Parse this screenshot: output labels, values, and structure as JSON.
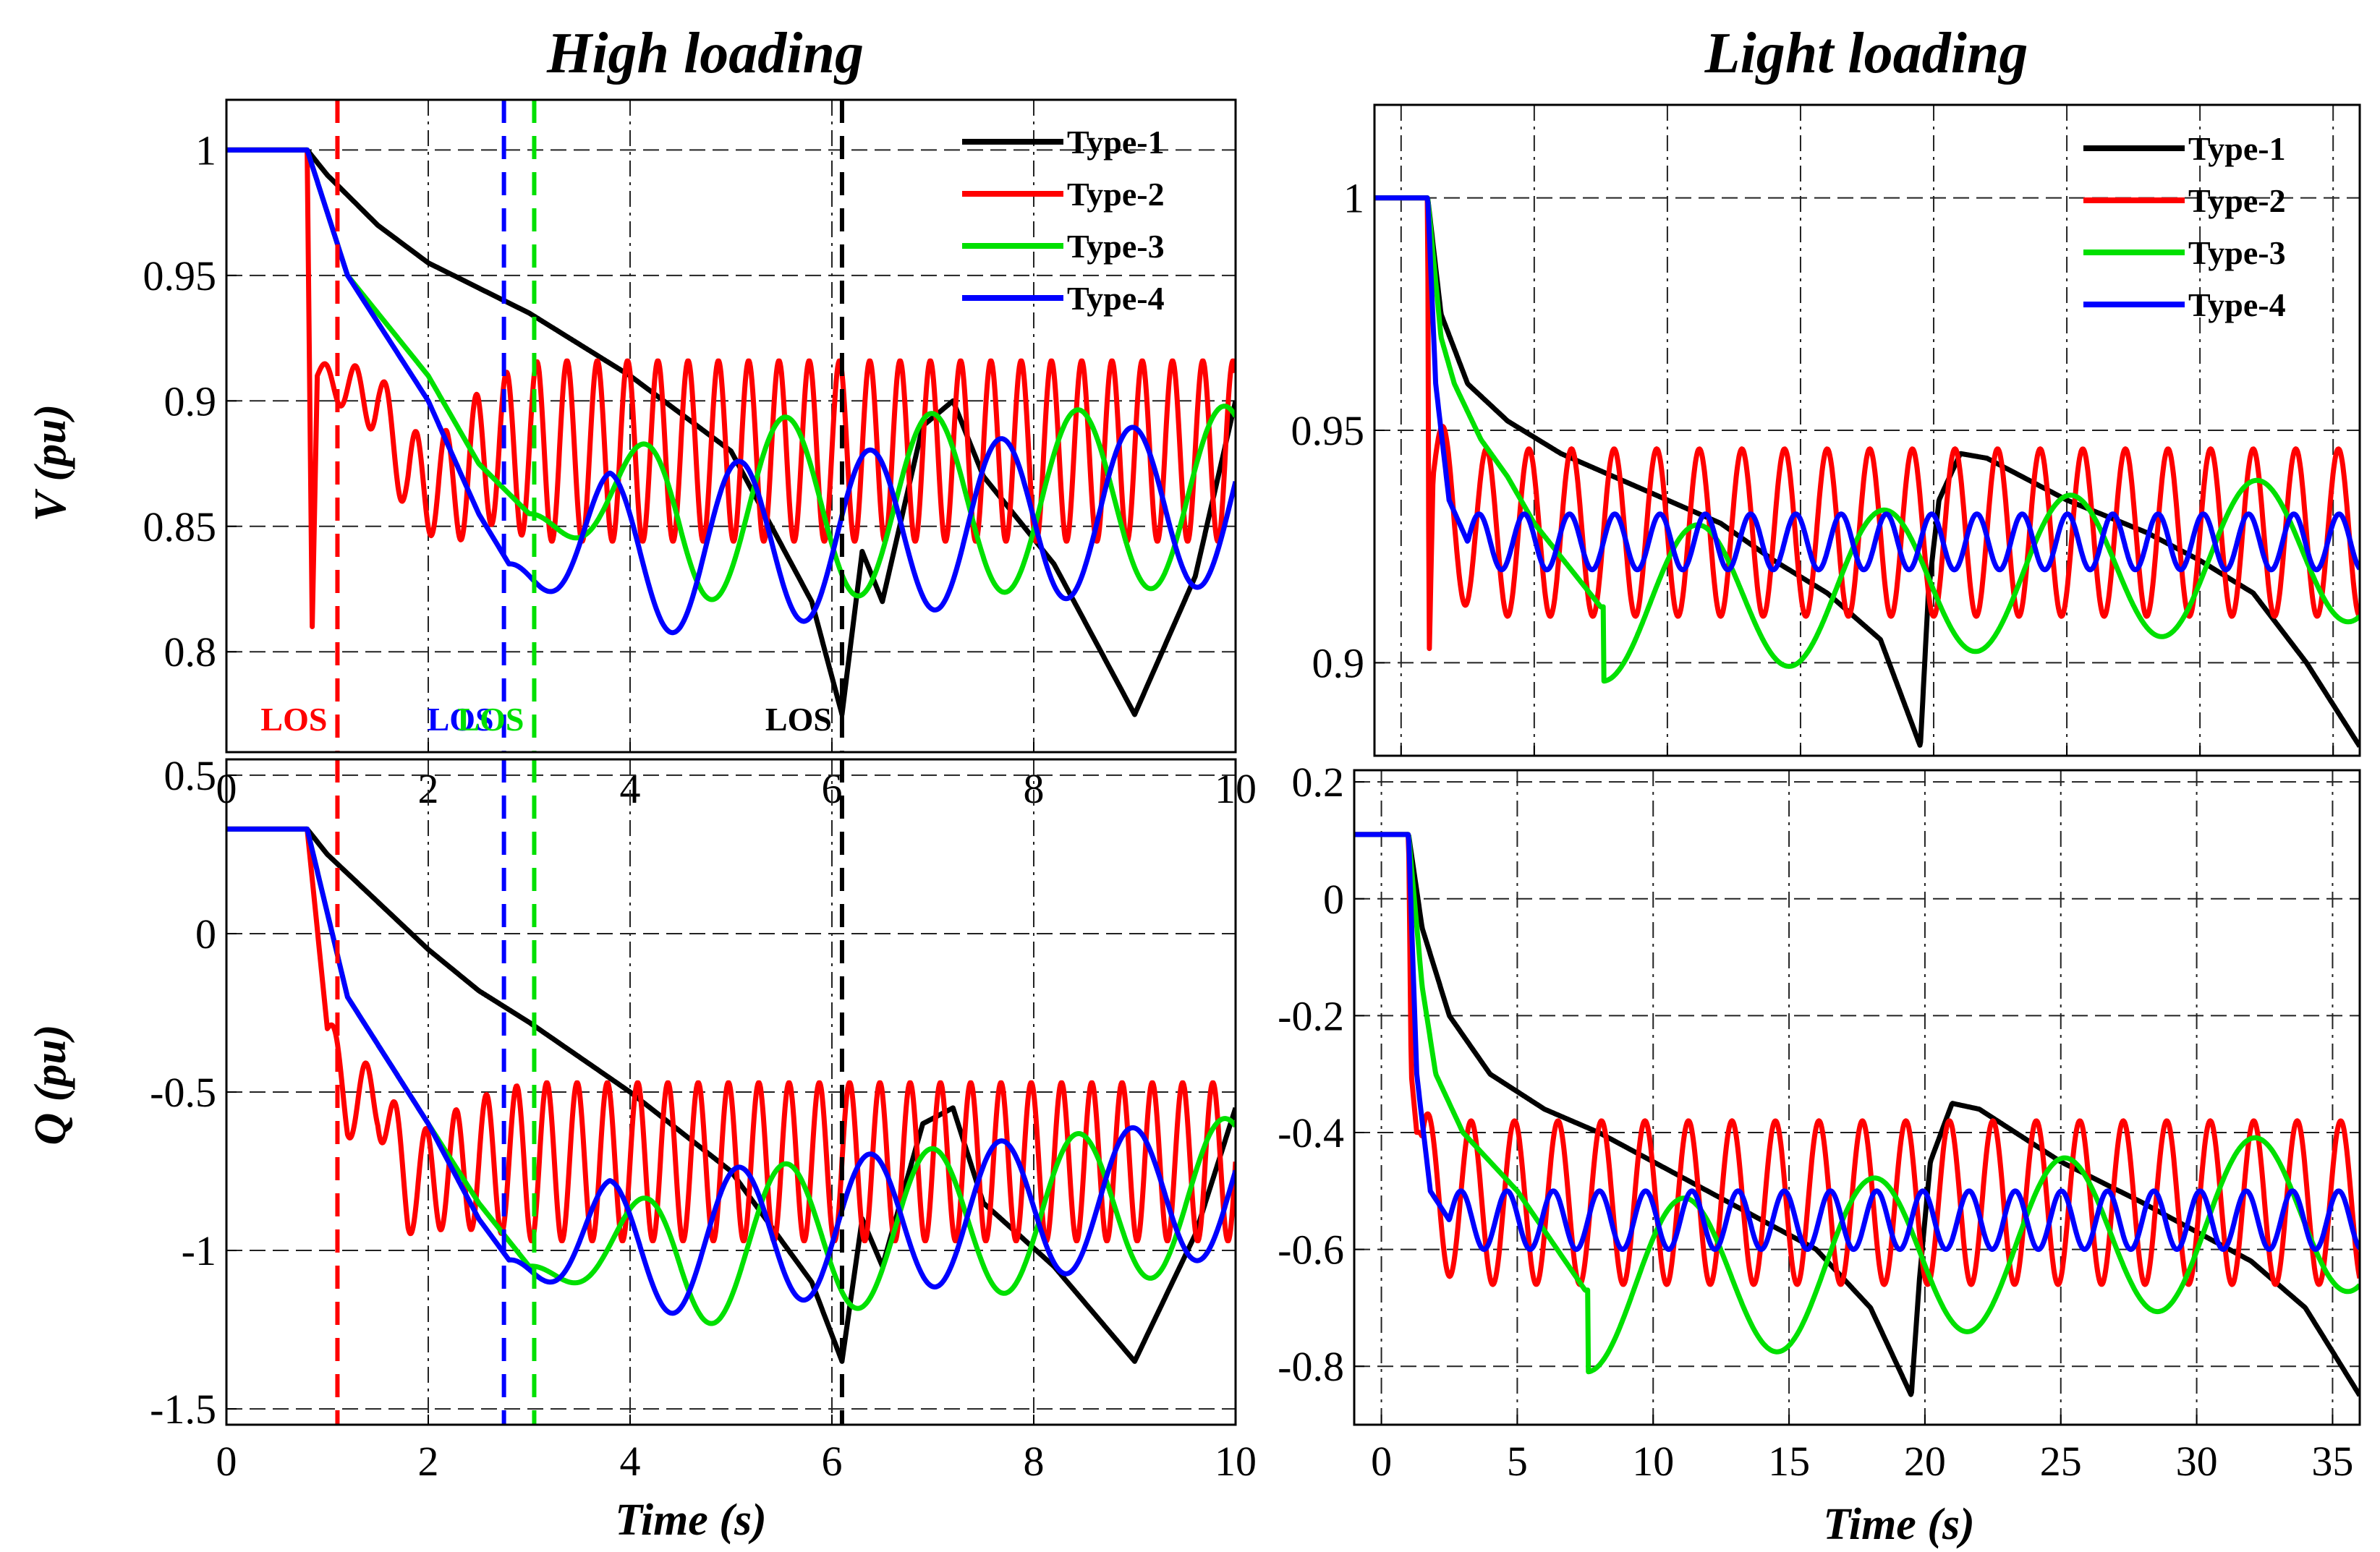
{
  "chart_data": [
    {
      "type": "line",
      "panel": "top-left",
      "title": "High loading",
      "xlabel": "",
      "ylabel": "V (pu)",
      "xlim": [
        0,
        10
      ],
      "ylim": [
        0.76,
        1.02
      ],
      "xticks": [
        0,
        2,
        4,
        6,
        8,
        10
      ],
      "yticks": [
        0.8,
        0.85,
        0.9,
        0.95,
        1
      ],
      "xtick_labels": [
        "0",
        "2",
        "4",
        "6",
        "8",
        "10"
      ],
      "ytick_labels": [
        "0.8",
        "0.85",
        "0.9",
        "0.95",
        "1"
      ],
      "grid": true,
      "legend": "top-right",
      "series": [
        {
          "name": "Type-1",
          "color": "#000000",
          "x": [
            0,
            0.8,
            1,
            1.5,
            2,
            3,
            4,
            5,
            5.8,
            6.1,
            6.3,
            6.5,
            6.9,
            7.2,
            7.5,
            8.2,
            9,
            9.6,
            10
          ],
          "y": [
            1,
            1,
            0.99,
            0.97,
            0.955,
            0.935,
            0.91,
            0.88,
            0.82,
            0.775,
            0.84,
            0.82,
            0.89,
            0.9,
            0.87,
            0.835,
            0.775,
            0.83,
            0.9
          ],
          "osc": null
        },
        {
          "name": "Type-2",
          "color": "#ff0000",
          "x": [
            0,
            0.8,
            0.85,
            0.9,
            1.2,
            1.5,
            1.8,
            2.2,
            2.6,
            10
          ],
          "y": [
            1,
            1,
            0.81,
            0.91,
            0.905,
            0.9,
            0.87,
            0.865,
            0.88,
            0.88
          ],
          "osc": {
            "start": 0.9,
            "period": 0.3,
            "amp0": 0.005,
            "amp1": 0.036,
            "ramp": 2.2
          }
        },
        {
          "name": "Type-3",
          "color": "#00e000",
          "x": [
            0,
            0.8,
            1.2,
            1.6,
            2,
            2.5,
            3,
            10
          ],
          "y": [
            1,
            1,
            0.95,
            0.93,
            0.91,
            0.875,
            0.855,
            0.862
          ],
          "osc": {
            "start": 3.0,
            "period": 1.45,
            "amp0": 0.0,
            "amp1": 0.036,
            "ramp": 1.5,
            "phase": 3.14
          }
        },
        {
          "name": "Type-4",
          "color": "#0000ff",
          "x": [
            0,
            0.8,
            1.2,
            1.6,
            2,
            2.5,
            2.8,
            10
          ],
          "y": [
            1,
            1,
            0.95,
            0.925,
            0.9,
            0.855,
            0.835,
            0.86
          ],
          "osc": {
            "start": 2.8,
            "period": 1.3,
            "amp0": 0.0,
            "amp1": 0.033,
            "ramp": 1.0,
            "phase": 3.14
          }
        }
      ],
      "vlines": [
        {
          "x": 1.1,
          "color": "#ff0000",
          "label": "LOS"
        },
        {
          "x": 2.75,
          "color": "#0000ff",
          "label": "LOS"
        },
        {
          "x": 3.05,
          "color": "#00e000",
          "label": "LOS"
        },
        {
          "x": 6.1,
          "color": "#000000",
          "label": "LOS"
        }
      ]
    },
    {
      "type": "line",
      "panel": "top-right",
      "title": "Light loading",
      "xlabel": "",
      "ylabel": "",
      "xlim": [
        -1,
        36
      ],
      "ylim": [
        0.88,
        1.02
      ],
      "xticks": [
        0,
        5,
        10,
        15,
        20,
        25,
        30,
        35
      ],
      "yticks": [
        0.9,
        0.95,
        1
      ],
      "xtick_labels": [],
      "ytick_labels": [
        "0.9",
        "0.95",
        "1"
      ],
      "grid": true,
      "legend": "top-right",
      "series": [
        {
          "name": "Type-1",
          "color": "#000000",
          "x": [
            -1,
            1,
            1.5,
            2.5,
            4,
            6,
            8,
            10,
            12,
            14,
            16,
            18,
            19.5,
            19.8,
            20.2,
            21,
            22,
            25,
            28,
            30,
            32,
            34,
            36
          ],
          "y": [
            1,
            1,
            0.975,
            0.96,
            0.952,
            0.945,
            0.94,
            0.935,
            0.93,
            0.922,
            0.915,
            0.905,
            0.882,
            0.915,
            0.935,
            0.945,
            0.944,
            0.935,
            0.928,
            0.922,
            0.915,
            0.9,
            0.882
          ],
          "osc": null
        },
        {
          "name": "Type-2",
          "color": "#ff0000",
          "x": [
            -1,
            1,
            1.05,
            1.2,
            2,
            3,
            36
          ],
          "y": [
            1,
            1,
            0.9,
            0.94,
            0.93,
            0.928,
            0.928
          ],
          "osc": {
            "start": 1.2,
            "period": 1.6,
            "amp0": 0.015,
            "amp1": 0.018,
            "ramp": 2.0
          }
        },
        {
          "name": "Type-3",
          "color": "#00e000",
          "x": [
            -1,
            1,
            1.5,
            2,
            3,
            4,
            5,
            7.5,
            36
          ],
          "y": [
            1,
            1,
            0.97,
            0.96,
            0.948,
            0.94,
            0.93,
            0.912,
            0.925
          ],
          "osc": {
            "start": 7.6,
            "period": 7.0,
            "amp0": 0.016,
            "amp1": 0.016,
            "ramp": 1.0,
            "phase": 4.71
          }
        },
        {
          "name": "Type-4",
          "color": "#0000ff",
          "x": [
            -1,
            1,
            1.3,
            1.8,
            2.5,
            36
          ],
          "y": [
            1,
            1,
            0.96,
            0.935,
            0.926,
            0.926
          ],
          "osc": {
            "start": 2.5,
            "period": 1.7,
            "amp0": 0.006,
            "amp1": 0.006,
            "ramp": 1.0
          }
        }
      ],
      "vlines": []
    },
    {
      "type": "line",
      "panel": "bottom-left",
      "title": "",
      "xlabel": "Time (s)",
      "ylabel": "Q (pu)",
      "xlim": [
        0,
        10
      ],
      "ylim": [
        -1.55,
        0.55
      ],
      "xticks": [
        0,
        2,
        4,
        6,
        8,
        10
      ],
      "yticks": [
        -1.5,
        -1,
        -0.5,
        0,
        0.5
      ],
      "xtick_labels": [
        "0",
        "2",
        "4",
        "6",
        "8",
        "10"
      ],
      "ytick_labels": [
        "-1.5",
        "-1",
        "-0.5",
        "0",
        "0.5"
      ],
      "grid": true,
      "legend": "none",
      "series": [
        {
          "name": "Type-1",
          "color": "#000000",
          "x": [
            0,
            0.8,
            1,
            1.5,
            2,
            2.5,
            3,
            4,
            5,
            5.8,
            6.1,
            6.3,
            6.5,
            6.9,
            7.2,
            7.5,
            8.2,
            9,
            9.6,
            10
          ],
          "y": [
            0.33,
            0.33,
            0.25,
            0.1,
            -0.05,
            -0.18,
            -0.28,
            -0.5,
            -0.75,
            -1.1,
            -1.35,
            -0.9,
            -1.05,
            -0.6,
            -0.55,
            -0.85,
            -1.05,
            -1.35,
            -0.95,
            -0.55
          ],
          "osc": null
        },
        {
          "name": "Type-2",
          "color": "#ff0000",
          "x": [
            0,
            0.8,
            1,
            1.2,
            1.5,
            1.8,
            2.2,
            2.6,
            10
          ],
          "y": [
            0.33,
            0.33,
            -0.3,
            -0.55,
            -0.5,
            -0.8,
            -0.75,
            -0.72,
            -0.72
          ],
          "osc": {
            "start": 1.0,
            "period": 0.3,
            "amp0": 0.08,
            "amp1": 0.25,
            "ramp": 2.0
          }
        },
        {
          "name": "Type-3",
          "color": "#00e000",
          "x": [
            0,
            0.8,
            1.2,
            1.6,
            2,
            2.5,
            3,
            10
          ],
          "y": [
            0.33,
            0.33,
            -0.2,
            -0.4,
            -0.6,
            -0.85,
            -1.05,
            -0.82
          ],
          "osc": {
            "start": 3.0,
            "period": 1.45,
            "amp0": 0.0,
            "amp1": 0.24,
            "ramp": 1.5,
            "phase": 3.14
          }
        },
        {
          "name": "Type-4",
          "color": "#0000ff",
          "x": [
            0,
            0.8,
            1.2,
            1.6,
            2,
            2.5,
            2.8,
            10
          ],
          "y": [
            0.33,
            0.33,
            -0.2,
            -0.4,
            -0.6,
            -0.9,
            -1.03,
            -0.8
          ],
          "osc": {
            "start": 2.8,
            "period": 1.3,
            "amp0": 0.0,
            "amp1": 0.22,
            "ramp": 1.0,
            "phase": 3.14
          }
        }
      ],
      "vlines": [
        {
          "x": 1.1,
          "color": "#ff0000",
          "label": ""
        },
        {
          "x": 2.75,
          "color": "#0000ff",
          "label": ""
        },
        {
          "x": 3.05,
          "color": "#00e000",
          "label": ""
        },
        {
          "x": 6.1,
          "color": "#000000",
          "label": ""
        }
      ]
    },
    {
      "type": "line",
      "panel": "bottom-right",
      "title": "",
      "xlabel": "Time (s)",
      "ylabel": "",
      "xlim": [
        -1,
        36
      ],
      "ylim": [
        -0.9,
        0.22
      ],
      "xticks": [
        0,
        5,
        10,
        15,
        20,
        25,
        30,
        35
      ],
      "yticks": [
        -0.8,
        -0.6,
        -0.4,
        -0.2,
        0,
        0.2
      ],
      "xtick_labels": [
        "0",
        "5",
        "10",
        "15",
        "20",
        "25",
        "30",
        "35"
      ],
      "ytick_labels": [
        "-0.8",
        "-0.6",
        "-0.4",
        "-0.2",
        "0",
        "0.2"
      ],
      "grid": true,
      "legend": "none",
      "series": [
        {
          "name": "Type-1",
          "color": "#000000",
          "x": [
            -1,
            1,
            1.5,
            2.5,
            4,
            6,
            8,
            10,
            12,
            14,
            16,
            18,
            19.5,
            19.8,
            20.2,
            21,
            22,
            25,
            28,
            30,
            32,
            34,
            36
          ],
          "y": [
            0.11,
            0.11,
            -0.05,
            -0.2,
            -0.3,
            -0.36,
            -0.4,
            -0.45,
            -0.5,
            -0.55,
            -0.6,
            -0.7,
            -0.85,
            -0.65,
            -0.45,
            -0.35,
            -0.36,
            -0.45,
            -0.52,
            -0.57,
            -0.62,
            -0.7,
            -0.85
          ],
          "osc": null
        },
        {
          "name": "Type-2",
          "color": "#ff0000",
          "x": [
            -1,
            1,
            1.1,
            1.5,
            2,
            3,
            36
          ],
          "y": [
            0.11,
            0.11,
            -0.3,
            -0.5,
            -0.5,
            -0.52,
            -0.52
          ],
          "osc": {
            "start": 1.3,
            "period": 1.6,
            "amp0": 0.13,
            "amp1": 0.14,
            "ramp": 2.0
          }
        },
        {
          "name": "Type-3",
          "color": "#00e000",
          "x": [
            -1,
            1,
            1.5,
            2,
            3,
            4,
            5,
            7.5,
            36
          ],
          "y": [
            0.11,
            0.11,
            -0.15,
            -0.3,
            -0.4,
            -0.45,
            -0.5,
            -0.67,
            -0.53
          ],
          "osc": {
            "start": 7.6,
            "period": 7.0,
            "amp0": 0.14,
            "amp1": 0.14,
            "ramp": 1.0,
            "phase": 4.71
          }
        },
        {
          "name": "Type-4",
          "color": "#0000ff",
          "x": [
            -1,
            1,
            1.3,
            1.8,
            2.5,
            36
          ],
          "y": [
            0.11,
            0.11,
            -0.3,
            -0.5,
            -0.55,
            -0.55
          ],
          "osc": {
            "start": 2.5,
            "period": 1.7,
            "amp0": 0.05,
            "amp1": 0.05,
            "ramp": 1.0
          }
        }
      ],
      "vlines": []
    }
  ]
}
